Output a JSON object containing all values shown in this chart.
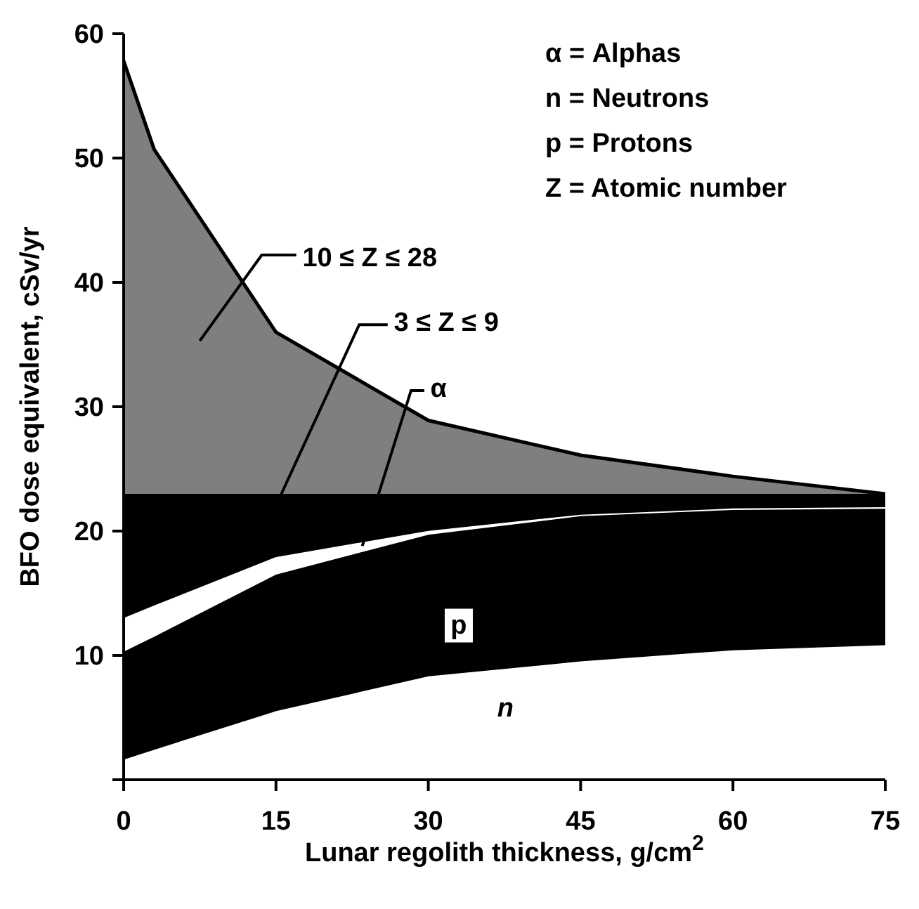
{
  "chart_data": {
    "type": "area",
    "stacked": true,
    "xlabel": "Lunar regolith thickness, g/cm$^{2}$",
    "ylabel": "BFO dose equivalent, cSv/yr",
    "x": [
      0,
      3,
      15,
      30,
      45,
      60,
      75
    ],
    "series": [
      {
        "name": "n",
        "color": "#ffffff",
        "values": [
          1.7,
          2.5,
          5.6,
          8.4,
          9.6,
          10.5,
          10.9
        ]
      },
      {
        "name": "p",
        "color": "#000000",
        "values": [
          8.6,
          9.0,
          10.9,
          11.3,
          11.6,
          11.2,
          10.9
        ]
      },
      {
        "name": "α",
        "color": "#ffffff",
        "values": [
          2.8,
          2.6,
          1.5,
          0.4,
          0.2,
          0.2,
          0.2
        ]
      },
      {
        "name": "3 ≤ Z ≤ 9",
        "color": "#000000",
        "values": [
          9.9,
          8.9,
          5.0,
          2.9,
          1.6,
          1.1,
          1.0
        ]
      },
      {
        "name": "10 ≤ Z ≤ 28",
        "color": "#7f7f7f",
        "values": [
          34.8,
          27.7,
          13.0,
          5.9,
          3.1,
          1.4,
          0
        ]
      }
    ],
    "xlim": [
      0,
      75
    ],
    "xticks": [
      0,
      15,
      30,
      45,
      60,
      75
    ],
    "ylim": [
      0,
      60
    ],
    "yticks": [
      {
        "value": 0,
        "label": null
      },
      10,
      20,
      30,
      40,
      50,
      60
    ],
    "annotations": [
      "α = Alphas",
      "n = Neutrons",
      "p = Protons",
      "Z = Atomic number"
    ],
    "grid": false,
    "legend": false
  }
}
